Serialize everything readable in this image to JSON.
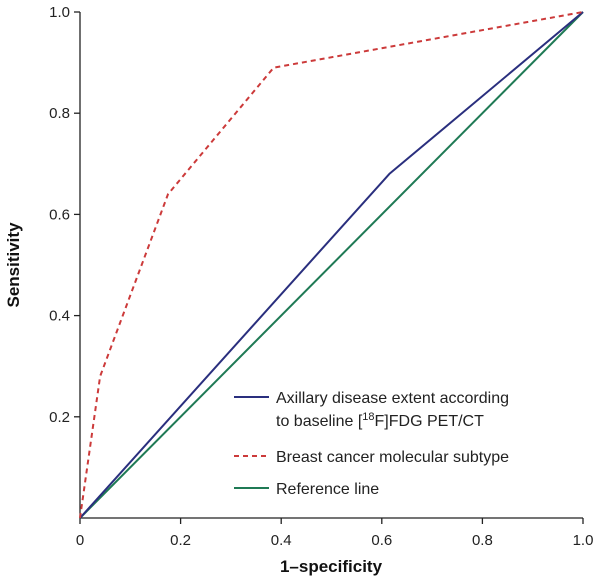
{
  "chart_data": {
    "type": "line",
    "title": "",
    "xlabel": "1–specificity",
    "ylabel": "Sensitivity",
    "xlim": [
      0,
      1.0
    ],
    "ylim": [
      0,
      1.0
    ],
    "x_ticks": [
      "0",
      "0.2",
      "0.4",
      "0.6",
      "0.8",
      "1.0"
    ],
    "y_ticks": [
      "0.2",
      "0.4",
      "0.6",
      "0.8",
      "1.0"
    ],
    "grid": false,
    "legend_position": "bottom-right",
    "series": [
      {
        "name_parts": [
          "Axillary disease extent according",
          "to baseline [",
          "18",
          "F]FDG PET/CT"
        ],
        "color": "#2a2f7e",
        "dash": "solid",
        "points": [
          [
            0,
            0
          ],
          [
            0.615,
            0.68
          ],
          [
            1.0,
            1.0
          ]
        ]
      },
      {
        "name": "Breast cancer molecular subtype",
        "color": "#cc3a3a",
        "dash": "dashed",
        "points": [
          [
            0,
            0
          ],
          [
            0.04,
            0.28
          ],
          [
            0.175,
            0.64
          ],
          [
            0.385,
            0.89
          ],
          [
            1.0,
            1.0
          ]
        ]
      },
      {
        "name": "Reference line",
        "color": "#1f7a55",
        "dash": "solid",
        "points": [
          [
            0,
            0
          ],
          [
            1.0,
            1.0
          ]
        ]
      }
    ]
  }
}
